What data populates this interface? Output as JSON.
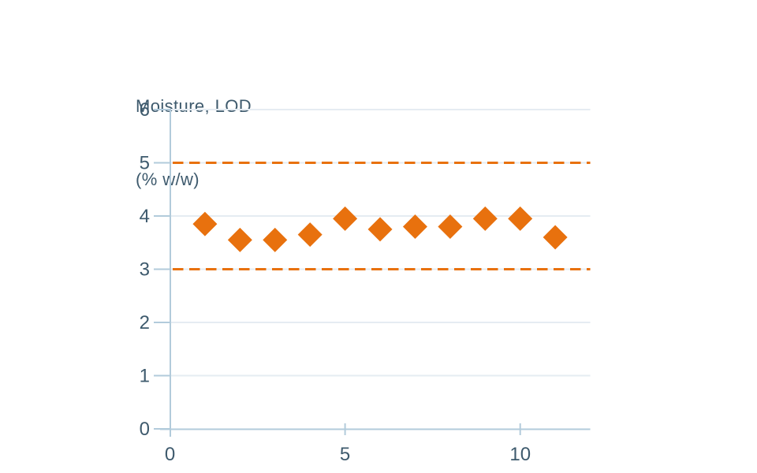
{
  "chart_data": {
    "type": "scatter",
    "title_lines": [
      "Moisture, LOD",
      "(% w/w)"
    ],
    "series": [
      {
        "name": "Moisture, LOD (% w/w)",
        "marker": "diamond",
        "x": [
          1,
          2,
          3,
          4,
          5,
          6,
          7,
          8,
          9,
          10,
          11
        ],
        "y": [
          3.85,
          3.55,
          3.55,
          3.65,
          3.95,
          3.75,
          3.8,
          3.8,
          3.95,
          3.95,
          3.6
        ]
      }
    ],
    "xlabel": "",
    "ylabel": "Moisture, LOD (% w/w)",
    "xlim": [
      0,
      12
    ],
    "ylim": [
      0,
      6
    ],
    "x_ticks": [
      0,
      5,
      10
    ],
    "y_ticks": [
      0,
      1,
      2,
      3,
      4,
      5,
      6
    ],
    "limit_lines": [
      {
        "value": 5,
        "style": "dashed"
      },
      {
        "value": 3,
        "style": "dashed"
      }
    ],
    "grid": true,
    "legend": "none",
    "colors": {
      "marker": "#E8710E",
      "limit": "#E8710E",
      "axis": "#B2CBDB",
      "grid": "#E5ECF2",
      "text": "#3E5A6D",
      "background": "#FFFFFF"
    }
  }
}
